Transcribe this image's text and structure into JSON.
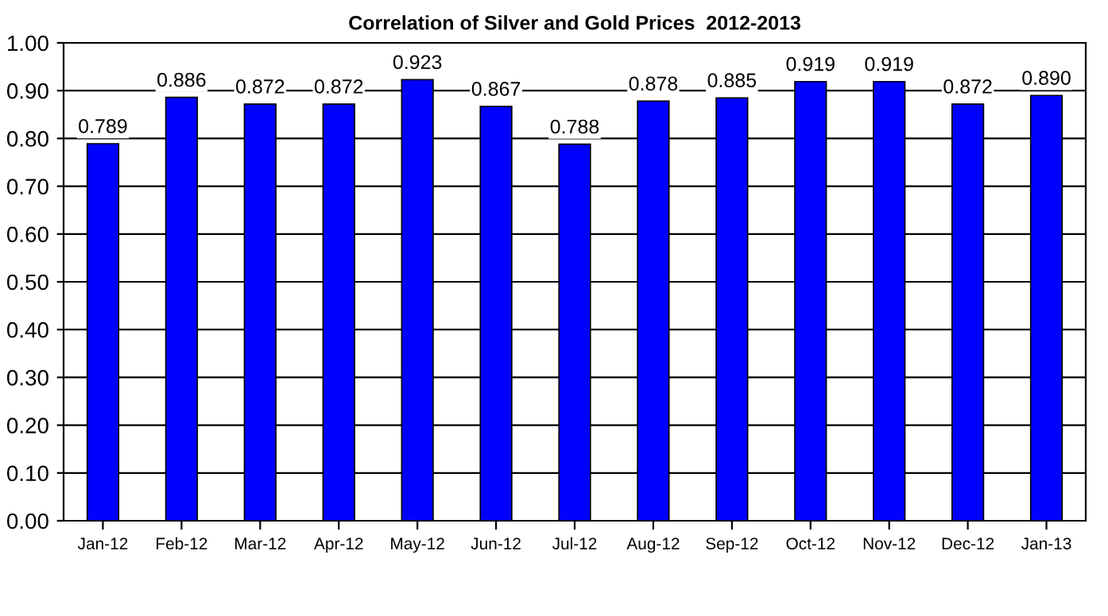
{
  "chart_data": {
    "type": "bar",
    "title": "Correlation of Silver and Gold Prices  2012-2013",
    "categories": [
      "Jan-12",
      "Feb-12",
      "Mar-12",
      "Apr-12",
      "May-12",
      "Jun-12",
      "Jul-12",
      "Aug-12",
      "Sep-12",
      "Oct-12",
      "Nov-12",
      "Dec-12",
      "Jan-13"
    ],
    "values": [
      0.789,
      0.886,
      0.872,
      0.872,
      0.923,
      0.867,
      0.788,
      0.878,
      0.885,
      0.919,
      0.919,
      0.872,
      0.89
    ],
    "value_labels": [
      "0.789",
      "0.886",
      "0.872",
      "0.872",
      "0.923",
      "0.867",
      "0.788",
      "0.878",
      "0.885",
      "0.919",
      "0.919",
      "0.872",
      "0.890"
    ],
    "color": "#0000ff",
    "ylim": [
      0,
      1
    ],
    "yticks": [
      {
        "value": 0,
        "label": "0.00"
      },
      {
        "value": 0.1,
        "label": "0.10"
      },
      {
        "value": 0.2,
        "label": "0.20"
      },
      {
        "value": 0.3,
        "label": "0.30"
      },
      {
        "value": 0.4,
        "label": "0.40"
      },
      {
        "value": 0.5,
        "label": "0.50"
      },
      {
        "value": 0.6,
        "label": "0.60"
      },
      {
        "value": 0.7,
        "label": "0.70"
      },
      {
        "value": 0.8,
        "label": "0.80"
      },
      {
        "value": 0.9,
        "label": "0.90"
      },
      {
        "value": 1,
        "label": "1.00"
      }
    ],
    "grid": "y",
    "legend": false
  }
}
